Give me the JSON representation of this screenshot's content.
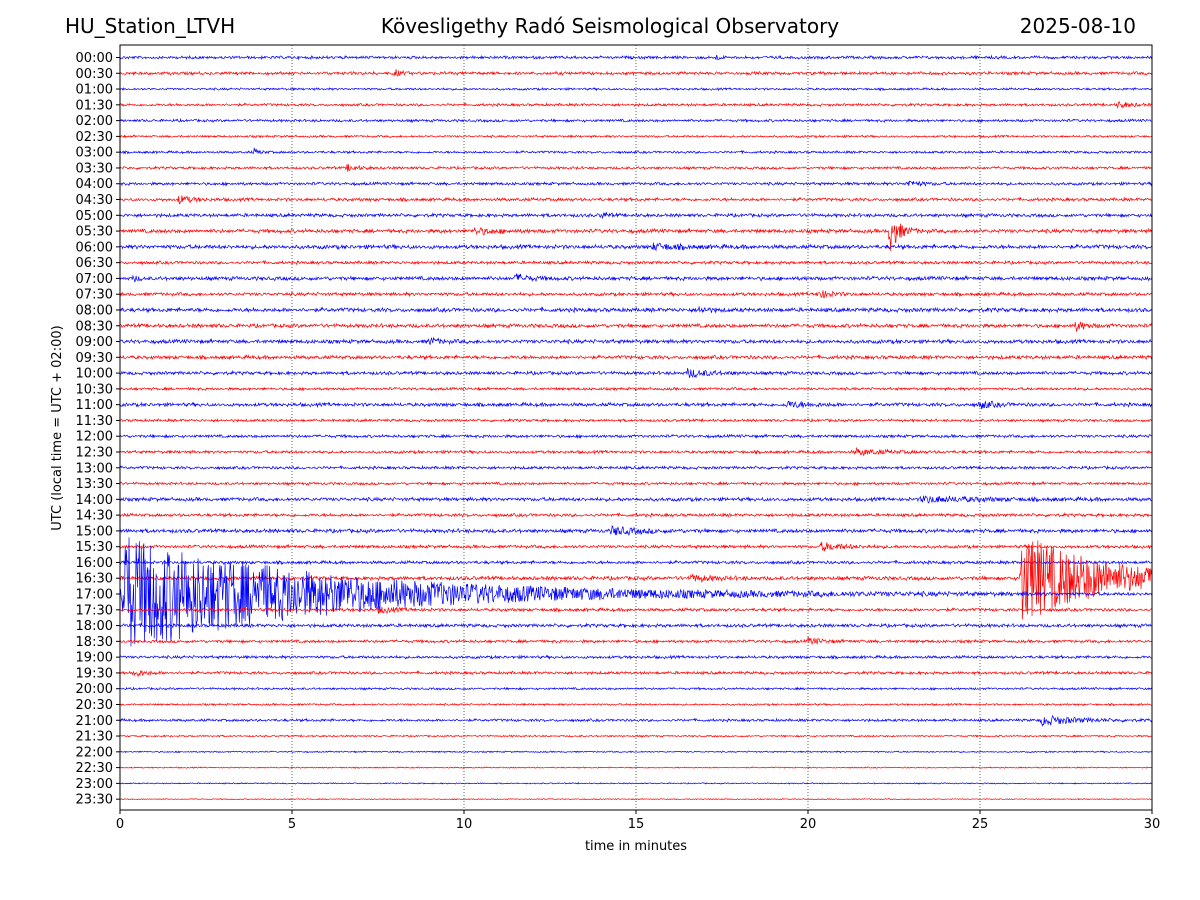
{
  "header": {
    "station": "HU_Station_LTVH",
    "observatory": "Kövesligethy Radó Seismological Observatory",
    "date": "2025-08-10"
  },
  "chart_data": {
    "type": "line",
    "title": "Kövesligethy Radó Seismological Observatory",
    "xlabel": "time in minutes",
    "ylabel": "UTC (local time = UTC + 02:00)",
    "xlim": [
      0,
      30
    ],
    "xticks": [
      "0",
      "5",
      "10",
      "15",
      "20",
      "25",
      "30"
    ],
    "grid": "vertical dotted lines at 5-minute ticks",
    "trace_colors": [
      "#0000ff",
      "#ff0000"
    ],
    "rows": [
      "00:00",
      "00:30",
      "01:00",
      "01:30",
      "02:00",
      "02:30",
      "03:00",
      "03:30",
      "04:00",
      "04:30",
      "05:00",
      "05:30",
      "06:00",
      "06:30",
      "07:00",
      "07:30",
      "08:00",
      "08:30",
      "09:00",
      "09:30",
      "10:00",
      "10:30",
      "11:00",
      "11:30",
      "12:00",
      "12:30",
      "13:00",
      "13:30",
      "14:00",
      "14:30",
      "15:00",
      "15:30",
      "16:00",
      "16:30",
      "17:00",
      "17:30",
      "18:00",
      "18:30",
      "19:00",
      "19:30",
      "20:00",
      "20:30",
      "21:00",
      "21:30",
      "22:00",
      "22:30",
      "23:00",
      "23:30"
    ],
    "noise_level": [
      1.2,
      1.3,
      0.9,
      1.1,
      1.1,
      0.9,
      1.0,
      1.1,
      1.2,
      1.3,
      1.4,
      1.6,
      1.7,
      1.3,
      1.6,
      1.4,
      1.7,
      1.6,
      1.6,
      1.5,
      1.4,
      1.1,
      1.5,
      1.1,
      1.2,
      1.2,
      1.2,
      1.1,
      1.5,
      1.3,
      1.6,
      1.3,
      1.3,
      1.6,
      1.4,
      1.3,
      1.4,
      1.2,
      1.2,
      1.2,
      0.9,
      0.8,
      1.1,
      0.7,
      0.6,
      0.5,
      0.5,
      0.4
    ],
    "events": [
      {
        "row": "00:00",
        "minute": 17.3,
        "amplitude": 3,
        "duration": 0.2
      },
      {
        "row": "00:30",
        "minute": 8.0,
        "amplitude": 3,
        "duration": 0.3
      },
      {
        "row": "01:30",
        "minute": 29.0,
        "amplitude": 3,
        "duration": 0.6
      },
      {
        "row": "03:00",
        "minute": 3.9,
        "amplitude": 3,
        "duration": 0.3
      },
      {
        "row": "03:30",
        "minute": 6.6,
        "amplitude": 3,
        "duration": 0.5
      },
      {
        "row": "04:00",
        "minute": 22.9,
        "amplitude": 3,
        "duration": 0.6
      },
      {
        "row": "04:30",
        "minute": 1.7,
        "amplitude": 4,
        "duration": 0.6
      },
      {
        "row": "05:00",
        "minute": 14.0,
        "amplitude": 3,
        "duration": 0.3
      },
      {
        "row": "05:30",
        "minute": 22.4,
        "amplitude": 20,
        "duration": 0.4
      },
      {
        "row": "05:30",
        "minute": 10.3,
        "amplitude": 3,
        "duration": 1.0
      },
      {
        "row": "06:00",
        "minute": 15.5,
        "amplitude": 3,
        "duration": 1.2
      },
      {
        "row": "07:00",
        "minute": 0.4,
        "amplitude": 3,
        "duration": 0.2
      },
      {
        "row": "07:00",
        "minute": 11.5,
        "amplitude": 4,
        "duration": 0.6
      },
      {
        "row": "07:30",
        "minute": 20.3,
        "amplitude": 4,
        "duration": 0.6
      },
      {
        "row": "08:00",
        "minute": 16.8,
        "amplitude": 3,
        "duration": 0.5
      },
      {
        "row": "08:30",
        "minute": 27.8,
        "amplitude": 5,
        "duration": 0.4
      },
      {
        "row": "09:00",
        "minute": 9.0,
        "amplitude": 3,
        "duration": 0.5
      },
      {
        "row": "10:00",
        "minute": 16.5,
        "amplitude": 4,
        "duration": 1.0
      },
      {
        "row": "11:00",
        "minute": 19.4,
        "amplitude": 3,
        "duration": 1.0
      },
      {
        "row": "11:00",
        "minute": 25.0,
        "amplitude": 4,
        "duration": 0.6
      },
      {
        "row": "12:30",
        "minute": 21.4,
        "amplitude": 3,
        "duration": 1.2
      },
      {
        "row": "14:00",
        "minute": 23.3,
        "amplitude": 3,
        "duration": 2.5
      },
      {
        "row": "15:00",
        "minute": 14.3,
        "amplitude": 4,
        "duration": 1.2
      },
      {
        "row": "15:30",
        "minute": 20.4,
        "amplitude": 4,
        "duration": 1.0
      },
      {
        "row": "16:30",
        "minute": 16.6,
        "amplitude": 3,
        "duration": 1.0
      },
      {
        "row": "16:30",
        "minute": 26.2,
        "amplitude": 45,
        "duration": 4.0
      },
      {
        "row": "17:00",
        "minute": 0.05,
        "amplitude": 60,
        "duration": 9.0
      },
      {
        "row": "17:30",
        "minute": 7.5,
        "amplitude": 3,
        "duration": 0.8
      },
      {
        "row": "18:30",
        "minute": 20.0,
        "amplitude": 3,
        "duration": 0.7
      },
      {
        "row": "19:30",
        "minute": 0.4,
        "amplitude": 4,
        "duration": 0.5
      },
      {
        "row": "21:00",
        "minute": 26.8,
        "amplitude": 5,
        "duration": 1.5
      }
    ]
  }
}
